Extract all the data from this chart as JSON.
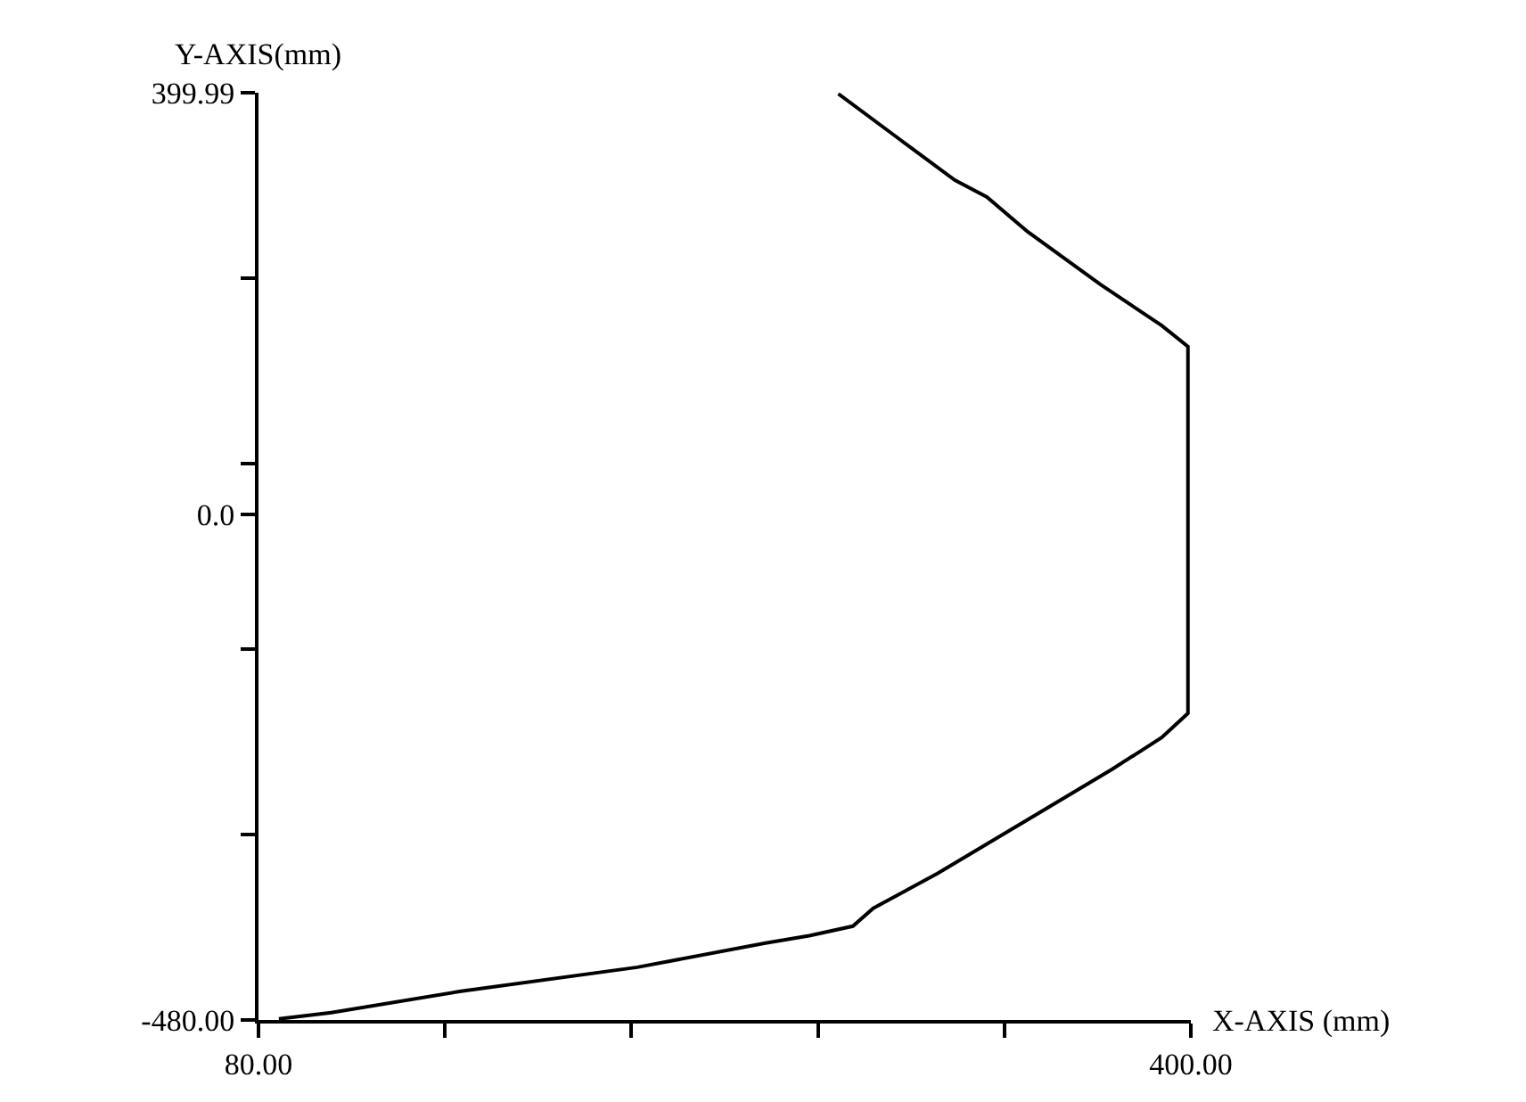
{
  "chart_data": {
    "type": "line",
    "xlabel": "X-AXIS (mm)",
    "ylabel": "Y-AXIS(mm)",
    "x": [
      279,
      298,
      319,
      330,
      344,
      369,
      390,
      399,
      399,
      390,
      373,
      347,
      313,
      291,
      284,
      269,
      254,
      210,
      149,
      105,
      87
    ],
    "series": [
      {
        "color": "#000000",
        "values": [
          399,
          360,
          317,
          301,
          268,
          218,
          179,
          159,
          -189,
          -212,
          -242,
          -285,
          -341,
          -374,
          -391,
          -400,
          -407,
          -430,
          -453,
          -473,
          -479
        ]
      }
    ],
    "xlim": [
      80,
      400
    ],
    "ylim": [
      -480,
      399.99
    ],
    "xticks": [
      {
        "value": 80,
        "label": "80.00"
      },
      {
        "value": 144,
        "label": null
      },
      {
        "value": 208,
        "label": null
      },
      {
        "value": 272,
        "label": null
      },
      {
        "value": 336,
        "label": null
      },
      {
        "value": 400,
        "label": "400.00"
      }
    ],
    "yticks": [
      {
        "value": -480,
        "label": "-480.00"
      },
      {
        "value": -304,
        "label": null
      },
      {
        "value": -128,
        "label": null
      },
      {
        "value": 0,
        "label": "0.0"
      },
      {
        "value": 48,
        "label": null
      },
      {
        "value": 224,
        "label": null
      },
      {
        "value": 399.99,
        "label": "399.99"
      }
    ],
    "marker": "none",
    "line_style": "solid"
  }
}
